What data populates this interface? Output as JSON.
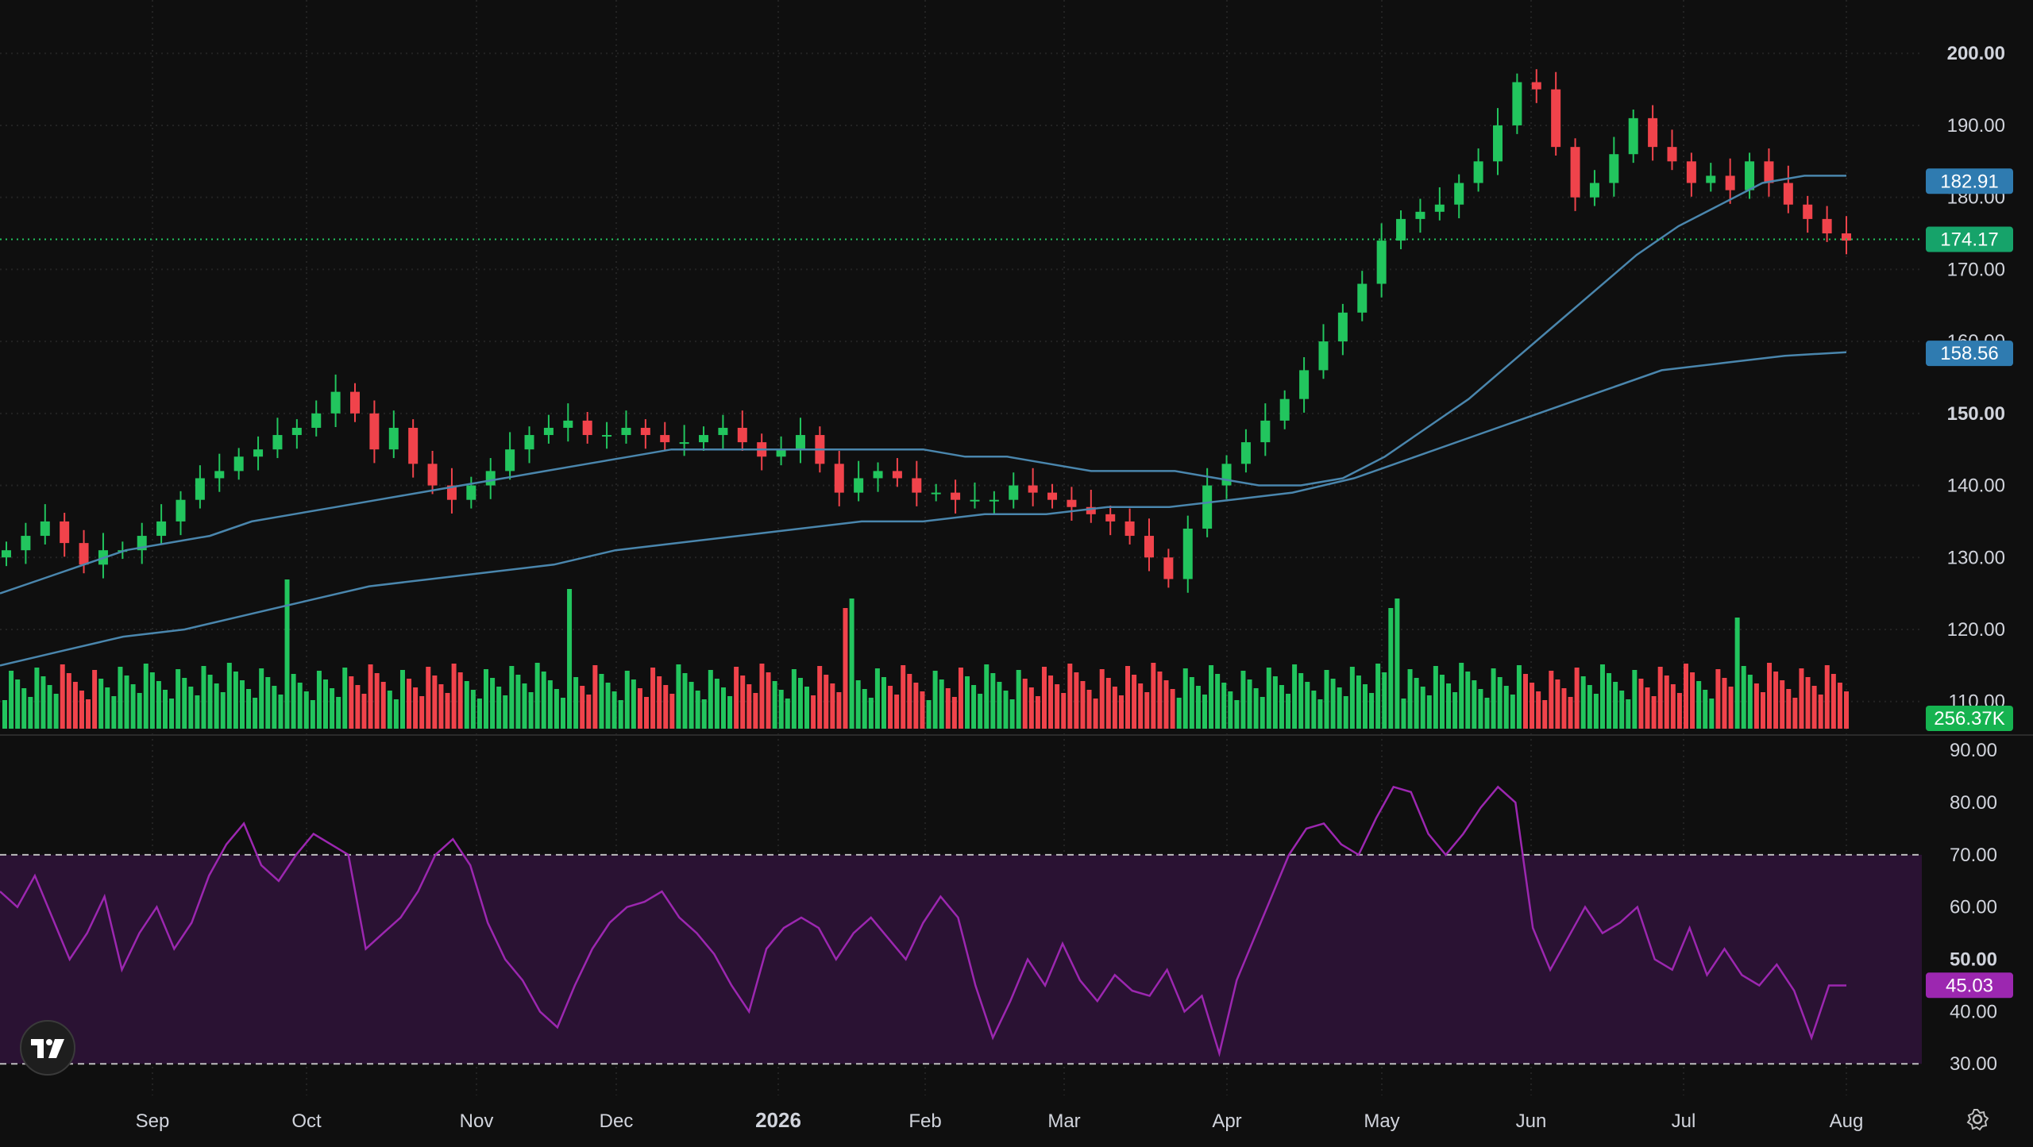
{
  "colors": {
    "background": "#0f0f0f",
    "grid": "#232323",
    "up": "#22c55e",
    "down": "#f0434b",
    "ma": "#4a86ad",
    "rsi": "#9c27b0",
    "rsi_band": "#2a1233",
    "axis_text": "#d1d4dc"
  },
  "labels": {
    "ma_fast": "182.91",
    "ma_slow": "158.56",
    "last_price": "174.17",
    "volume": "256.37K",
    "rsi": "45.03"
  },
  "icons": {
    "logo": "tradingview-logo-icon",
    "settings": "gear-icon"
  },
  "chart_data": [
    {
      "type": "candlestick",
      "y_ticks": [
        "200.00",
        "190.00",
        "180.00",
        "170.00",
        "160.00",
        "150.00",
        "140.00",
        "130.00",
        "120.00",
        "110.00"
      ],
      "ylim": [
        106,
        203
      ],
      "x_ticks": [
        "Sep",
        "Oct",
        "Nov",
        "Dec",
        "2026",
        "Feb",
        "Mar",
        "Apr",
        "May",
        "Jun",
        "Jul",
        "Aug"
      ],
      "series": [
        {
          "name": "price",
          "values": [
            131,
            133,
            135,
            132,
            129,
            131,
            131,
            133,
            135,
            138,
            141,
            142,
            144,
            145,
            147,
            148,
            150,
            153,
            150,
            145,
            148,
            143,
            140,
            138,
            140,
            142,
            145,
            147,
            148,
            149,
            147,
            147,
            148,
            147,
            146,
            146,
            147,
            148,
            146,
            144,
            145,
            147,
            143,
            139,
            141,
            142,
            141,
            139,
            139,
            138,
            138,
            138,
            140,
            139,
            138,
            137,
            136,
            135,
            133,
            130,
            127,
            134,
            140,
            143,
            146,
            149,
            152,
            156,
            160,
            164,
            168,
            174,
            177,
            178,
            179,
            182,
            185,
            190,
            196,
            195,
            187,
            180,
            182,
            186,
            191,
            187,
            185,
            182,
            183,
            181,
            185,
            182,
            179,
            177,
            175,
            174
          ]
        },
        {
          "name": "ma_fast",
          "values": [
            125,
            127,
            129,
            131,
            132,
            133,
            135,
            136,
            137,
            138,
            139,
            140,
            141,
            142,
            143,
            144,
            145,
            145,
            145,
            145,
            145,
            145,
            145,
            144,
            144,
            143,
            142,
            142,
            142,
            141,
            140,
            140,
            141,
            144,
            148,
            152,
            157,
            162,
            167,
            172,
            176,
            179,
            182,
            183,
            183
          ]
        },
        {
          "name": "ma_slow",
          "values": [
            115,
            117,
            119,
            120,
            122,
            124,
            126,
            127,
            128,
            129,
            131,
            132,
            133,
            134,
            135,
            135,
            136,
            136,
            137,
            137,
            138,
            139,
            141,
            144,
            147,
            150,
            153,
            156,
            157,
            158,
            158.5
          ]
        }
      ],
      "last": 174.17
    },
    {
      "type": "bar",
      "name": "volume",
      "label": "256.37K"
    },
    {
      "type": "line",
      "name": "RSI",
      "y_ticks": [
        "90.00",
        "80.00",
        "70.00",
        "60.00",
        "50.00",
        "40.00",
        "30.00"
      ],
      "ylim": [
        27,
        92
      ],
      "bands": [
        70,
        30
      ],
      "values": [
        63,
        60,
        66,
        58,
        50,
        55,
        62,
        48,
        55,
        60,
        52,
        57,
        66,
        72,
        76,
        68,
        65,
        70,
        74,
        72,
        70,
        52,
        55,
        58,
        63,
        70,
        73,
        68,
        57,
        50,
        46,
        40,
        37,
        45,
        52,
        57,
        60,
        61,
        63,
        58,
        55,
        51,
        45,
        40,
        52,
        56,
        58,
        56,
        50,
        55,
        58,
        54,
        50,
        57,
        62,
        58,
        45,
        35,
        42,
        50,
        45,
        53,
        46,
        42,
        47,
        44,
        43,
        48,
        40,
        43,
        32,
        46,
        54,
        62,
        70,
        75,
        76,
        72,
        70,
        77,
        83,
        82,
        74,
        70,
        74,
        79,
        83,
        80,
        56,
        48,
        54,
        60,
        55,
        57,
        60,
        50,
        48,
        56,
        47,
        52,
        47,
        45,
        49,
        44,
        35,
        45,
        45
      ]
    }
  ]
}
